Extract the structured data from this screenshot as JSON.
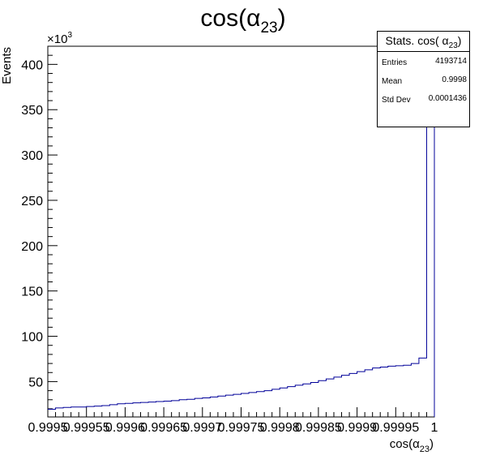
{
  "chart_data": {
    "type": "histogram",
    "title": {
      "base": "cos(α",
      "sub": "23",
      "close": ")"
    },
    "xlabel": {
      "base": "cos(α",
      "sub": "23",
      "close": ")"
    },
    "ylabel": "Events",
    "y_multiplier": {
      "base": "×10",
      "exp": "3"
    },
    "xlim": [
      0.9995,
      1.0
    ],
    "ylim": [
      11000,
      420000
    ],
    "x_tick_labels": [
      "0.9995",
      "0.99955",
      "0.9996",
      "0.99965",
      "0.9997",
      "0.99975",
      "0.9998",
      "0.99985",
      "0.9999",
      "0.99995",
      "1"
    ],
    "x_tick_values": [
      0.9995,
      0.99955,
      0.9996,
      0.99965,
      0.9997,
      0.99975,
      0.9998,
      0.99985,
      0.9999,
      0.99995,
      1.0
    ],
    "y_tick_labels": [
      "50",
      "100",
      "150",
      "200",
      "250",
      "300",
      "350",
      "400"
    ],
    "y_tick_values": [
      50000,
      100000,
      150000,
      200000,
      250000,
      300000,
      350000,
      400000
    ],
    "bin_width": 1e-05,
    "bin_edges_start": 0.9995,
    "values": [
      19500,
      21000,
      21500,
      22000,
      22000,
      22500,
      23000,
      23500,
      24500,
      25500,
      26000,
      26500,
      27000,
      27500,
      28000,
      28500,
      29000,
      30000,
      30500,
      31500,
      32000,
      33000,
      34000,
      35000,
      36000,
      37000,
      38000,
      39000,
      40000,
      41500,
      43000,
      44500,
      46000,
      47500,
      49000,
      51000,
      53000,
      55000,
      57000,
      59000,
      61000,
      63000,
      65000,
      66000,
      67000,
      67500,
      68000,
      70000,
      76000,
      420000
    ],
    "line_color": "#000099",
    "grid": false,
    "stats": {
      "title": {
        "base": "Stats. cos( α",
        "sub": "23",
        "close": ")"
      },
      "entries_label": "Entries",
      "entries": "4193714",
      "mean_label": "Mean",
      "mean": "0.9998",
      "stddev_label": "Std Dev",
      "stddev": "0.0001436"
    }
  }
}
